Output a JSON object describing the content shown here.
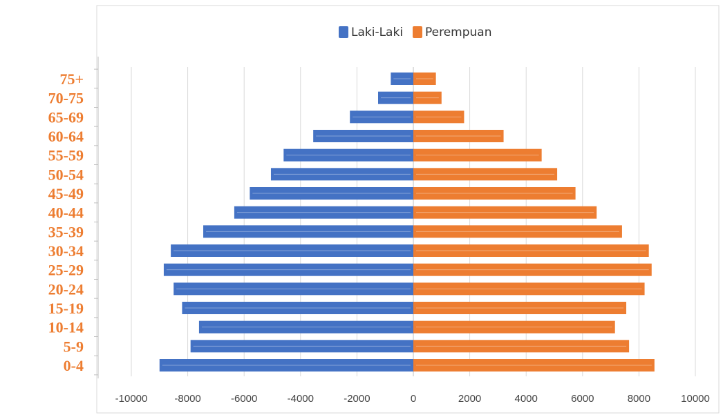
{
  "chart_data": {
    "type": "bar",
    "orientation": "horizontal",
    "stacked_diverging": true,
    "categories": [
      "0-4",
      "5-9",
      "10-14",
      "15-19",
      "20-24",
      "25-29",
      "30-34",
      "35-39",
      "40-44",
      "45-49",
      "50-54",
      "55-59",
      "60-64",
      "65-69",
      "70-75",
      "75+"
    ],
    "series": [
      {
        "name": "Laki-Laki",
        "color": "#4472C4",
        "values": [
          -9000,
          -7900,
          -7600,
          -8200,
          -8500,
          -8850,
          -8600,
          -7450,
          -6350,
          -5800,
          -5050,
          -4600,
          -3550,
          -2250,
          -1250,
          -800
        ]
      },
      {
        "name": "Perempuan",
        "color": "#ED7D31",
        "values": [
          8550,
          7650,
          7150,
          7550,
          8200,
          8450,
          8350,
          7400,
          6500,
          5750,
          5100,
          4550,
          3200,
          1800,
          1000,
          800
        ]
      }
    ],
    "xlim": [
      -10000,
      10000
    ],
    "x_ticks": [
      "-10000",
      "-8000",
      "-6000",
      "-4000",
      "-2000",
      "0",
      "2000",
      "4000",
      "6000",
      "8000",
      "10000"
    ],
    "category_label_color": "#ED7D31",
    "grid": true,
    "legend_position": "top-center",
    "title": "",
    "xlabel": "",
    "ylabel": ""
  }
}
